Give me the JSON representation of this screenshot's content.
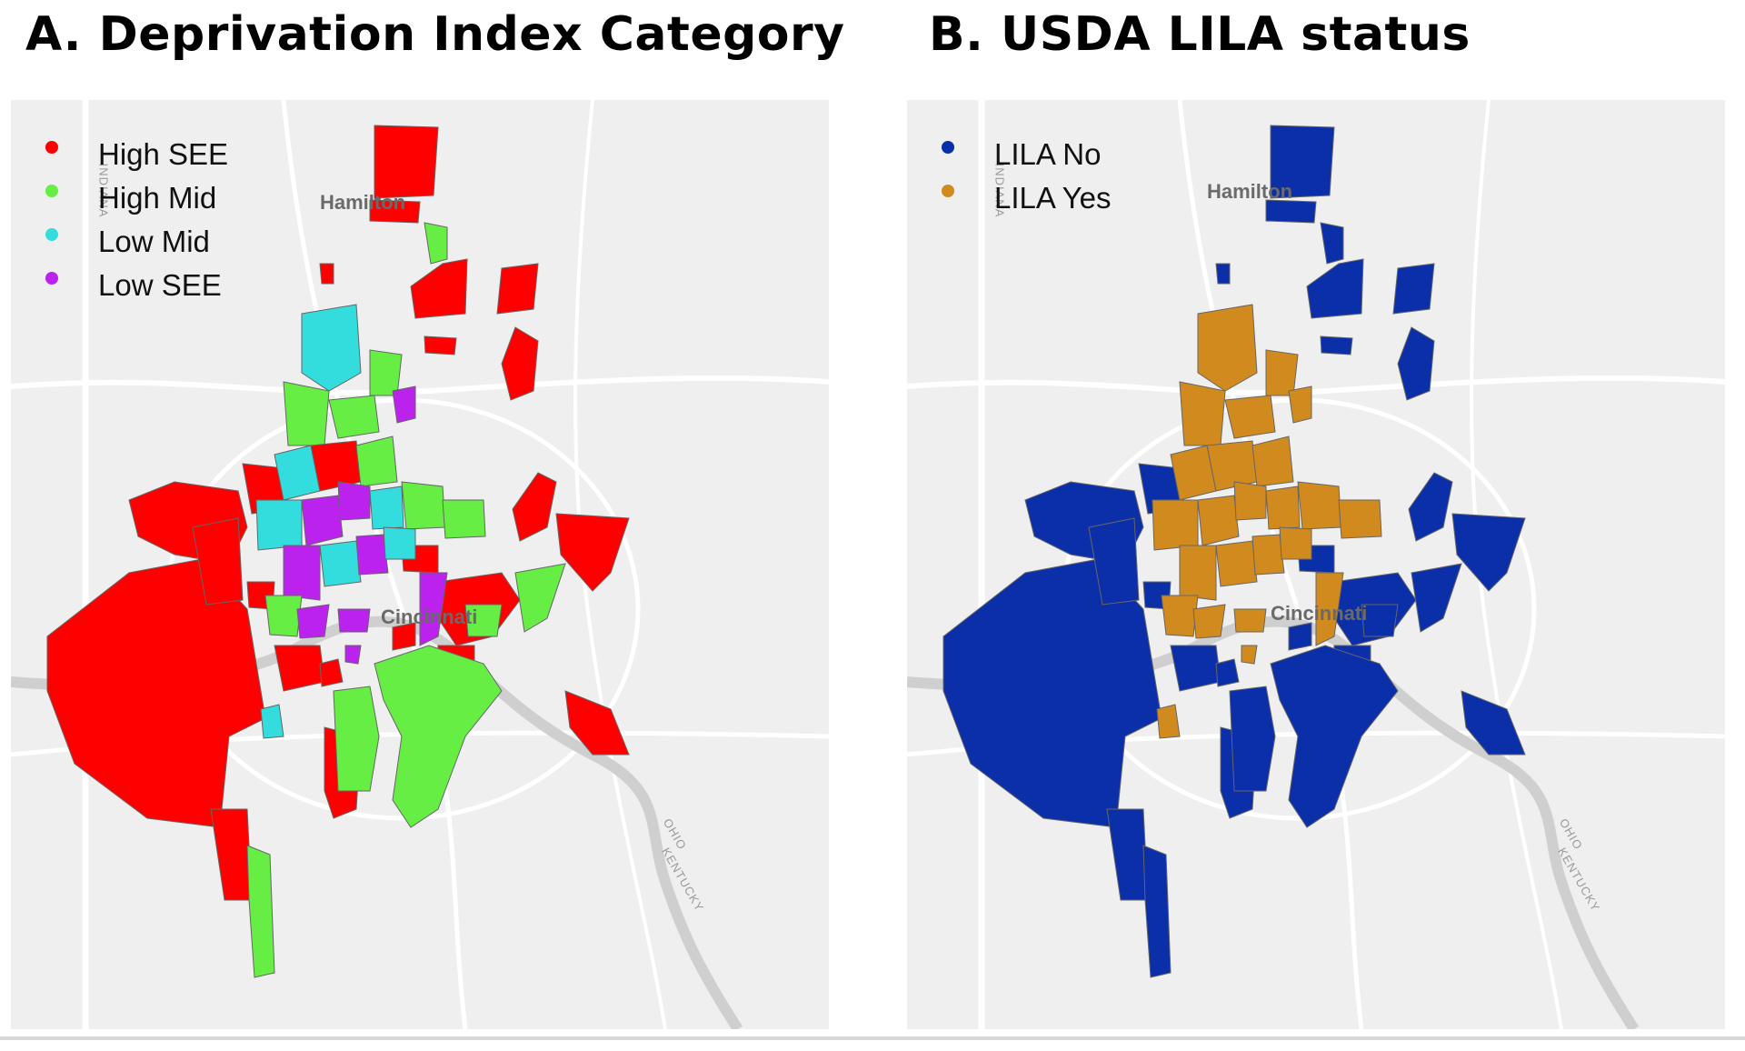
{
  "panels": [
    {
      "title": "A. Deprivation Index Category",
      "legend": [
        {
          "label": "High SEE",
          "color": "#ff0000"
        },
        {
          "label": "High Mid",
          "color": "#66ee44"
        },
        {
          "label": "Low Mid",
          "color": "#33dddd"
        },
        {
          "label": "Low SEE",
          "color": "#bb22ee"
        }
      ],
      "labels": {
        "hamilton": "Hamilton",
        "cincinnati": "Cincinnati",
        "indiana": "INDIANA",
        "ohio": "OHIO",
        "kentucky": "KENTUCKY"
      }
    },
    {
      "title": "B. USDA LILA status",
      "legend": [
        {
          "label": "LILA No",
          "color": "#0a2fa8"
        },
        {
          "label": "LILA Yes",
          "color": "#d18a1e"
        }
      ],
      "labels": {
        "hamilton": "Hamilton",
        "cincinnati": "Cincinnati",
        "indiana": "INDIANA",
        "ohio": "OHIO",
        "kentucky": "KENTUCKY"
      }
    }
  ],
  "colors": {
    "basemap": "#efefef",
    "road": "#ffffff",
    "river": "#cfcfcf",
    "tract_border": "#7a7a7a"
  }
}
